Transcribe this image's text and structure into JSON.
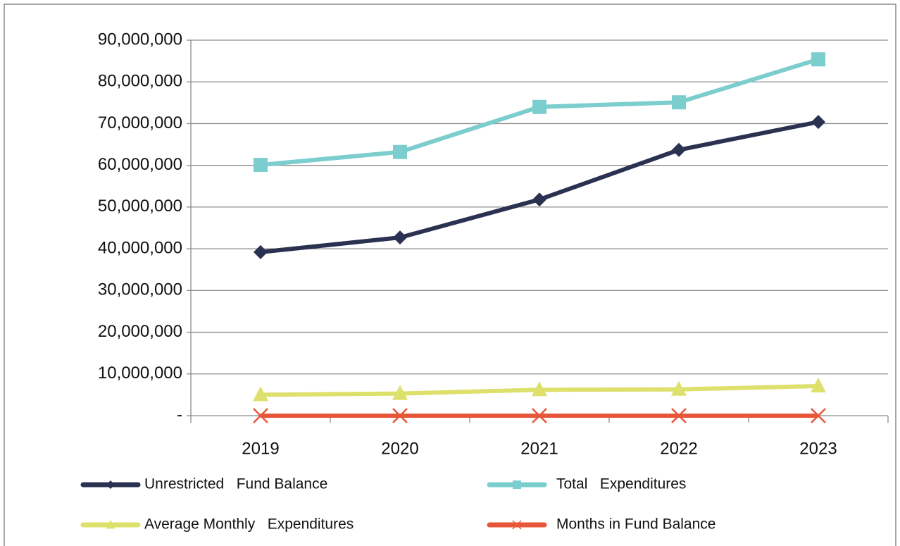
{
  "chart_data": {
    "type": "line",
    "categories": [
      "2019",
      "2020",
      "2021",
      "2022",
      "2023"
    ],
    "series": [
      {
        "name": "Unrestricted   Fund Balance",
        "color": "#2b3150",
        "marker": "diamond",
        "values": [
          39200000,
          42700000,
          51800000,
          63700000,
          70400000
        ]
      },
      {
        "name": "Total   Expenditures",
        "color": "#7ccdcd",
        "marker": "square",
        "values": [
          60100000,
          63200000,
          74000000,
          75100000,
          85400000
        ]
      },
      {
        "name": "Average Monthly   Expenditures",
        "color": "#dde06a",
        "marker": "triangle",
        "values": [
          5000000,
          5300000,
          6200000,
          6300000,
          7100000
        ]
      },
      {
        "name": "Months in Fund Balance",
        "color": "#e8563a",
        "marker": "x",
        "values": [
          7.8,
          8.1,
          8.4,
          10.1,
          9.9
        ]
      }
    ],
    "ylim": [
      0,
      90000000
    ],
    "yticks": [
      {
        "value": 0,
        "label": "-"
      },
      {
        "value": 10000000,
        "label": "10,000,000"
      },
      {
        "value": 20000000,
        "label": "20,000,000"
      },
      {
        "value": 30000000,
        "label": "30,000,000"
      },
      {
        "value": 40000000,
        "label": "40,000,000"
      },
      {
        "value": 50000000,
        "label": "50,000,000"
      },
      {
        "value": 60000000,
        "label": "60,000,000"
      },
      {
        "value": 70000000,
        "label": "70,000,000"
      },
      {
        "value": 80000000,
        "label": "80,000,000"
      },
      {
        "value": 90000000,
        "label": "90,000,000"
      }
    ],
    "grid": true,
    "legend": "bottom"
  }
}
